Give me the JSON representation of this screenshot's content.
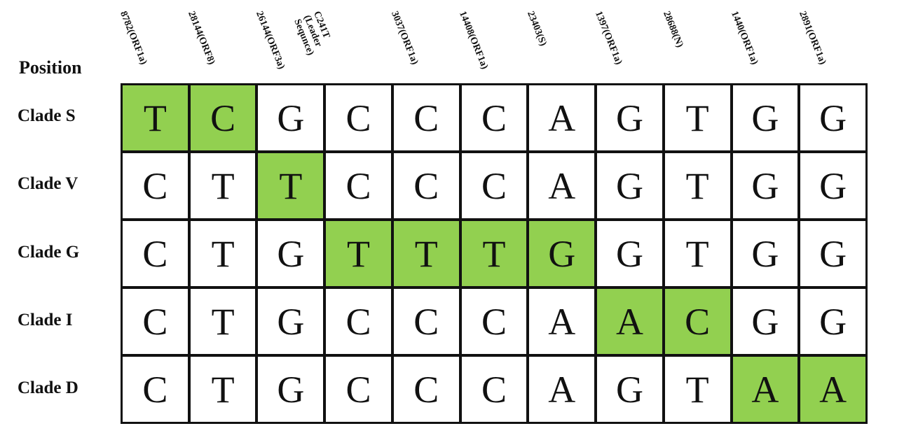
{
  "position_label": "Position",
  "highlight_color": "#92d050",
  "columns": [
    {
      "label": "8782(ORF1a)"
    },
    {
      "label": "28144(ORF8)"
    },
    {
      "label": "26144(ORF3a)"
    },
    {
      "label": "C241T (Leader Sequnce)"
    },
    {
      "label": "3037(ORF1a)"
    },
    {
      "label": "14408(ORF1a)"
    },
    {
      "label": "23403(S)"
    },
    {
      "label": "1397(ORF1a)"
    },
    {
      "label": "28688(N)"
    },
    {
      "label": "1440(ORF1a)"
    },
    {
      "label": "2891(ORF1a)"
    }
  ],
  "rows": [
    {
      "label": "Clade S",
      "bases": [
        "T",
        "C",
        "G",
        "C",
        "C",
        "C",
        "A",
        "G",
        "T",
        "G",
        "G"
      ],
      "highlighted": [
        true,
        true,
        false,
        false,
        false,
        false,
        false,
        false,
        false,
        false,
        false
      ]
    },
    {
      "label": "Clade V",
      "bases": [
        "C",
        "T",
        "T",
        "C",
        "C",
        "C",
        "A",
        "G",
        "T",
        "G",
        "G"
      ],
      "highlighted": [
        false,
        false,
        true,
        false,
        false,
        false,
        false,
        false,
        false,
        false,
        false
      ]
    },
    {
      "label": "Clade G",
      "bases": [
        "C",
        "T",
        "G",
        "T",
        "T",
        "T",
        "G",
        "G",
        "T",
        "G",
        "G"
      ],
      "highlighted": [
        false,
        false,
        false,
        true,
        true,
        true,
        true,
        false,
        false,
        false,
        false
      ]
    },
    {
      "label": "Clade I",
      "bases": [
        "C",
        "T",
        "G",
        "C",
        "C",
        "C",
        "A",
        "A",
        "C",
        "G",
        "G"
      ],
      "highlighted": [
        false,
        false,
        false,
        false,
        false,
        false,
        false,
        true,
        true,
        false,
        false
      ]
    },
    {
      "label": "Clade D",
      "bases": [
        "C",
        "T",
        "G",
        "C",
        "C",
        "C",
        "A",
        "G",
        "T",
        "A",
        "A"
      ],
      "highlighted": [
        false,
        false,
        false,
        false,
        false,
        false,
        false,
        false,
        false,
        true,
        true
      ]
    }
  ]
}
